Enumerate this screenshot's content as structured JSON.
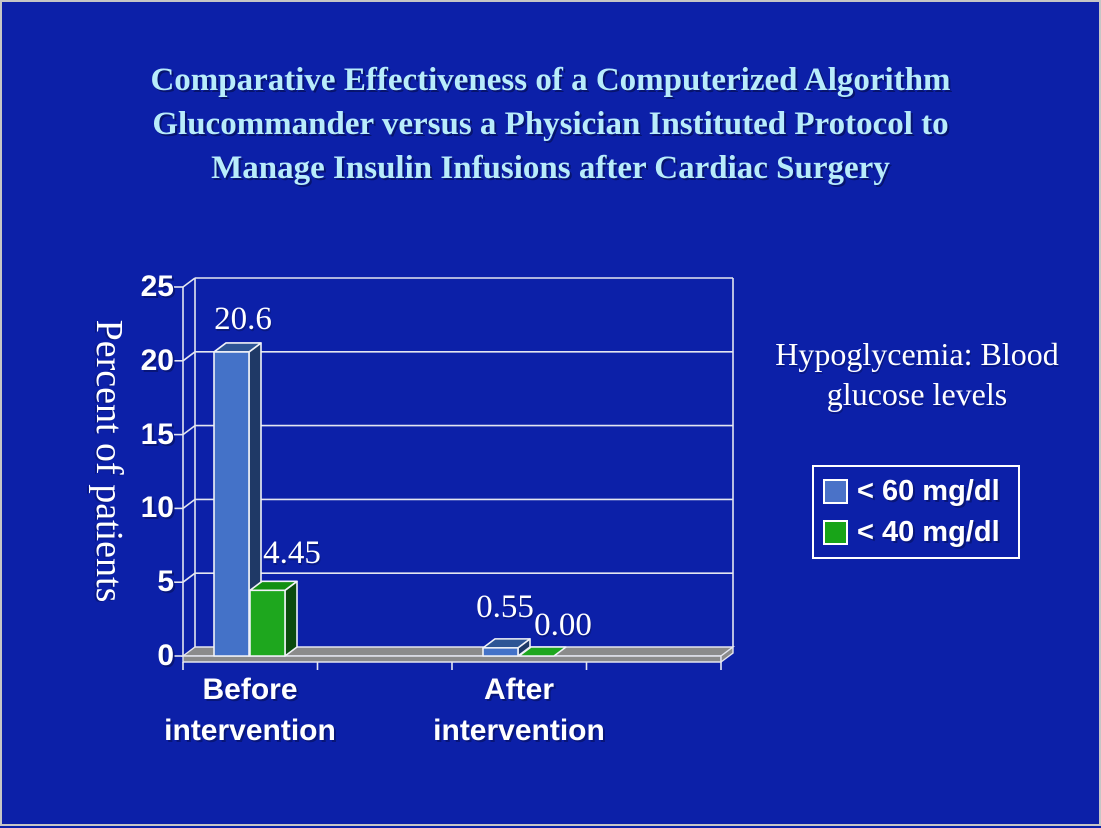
{
  "slide": {
    "title_lines": [
      "Comparative Effectiveness of a Computerized Algorithm",
      "Glucommander versus a Physician Instituted Protocol to",
      "Manage Insulin Infusions after Cardiac Surgery"
    ],
    "colors": {
      "background": "#0c20a8",
      "frame_border": "#c6c6c6",
      "title_text": "#b8ecfb",
      "body_text": "#ffffff",
      "gridline": "#e4e6f0",
      "floor": "#8b8b8b"
    }
  },
  "annotation": {
    "lines": [
      "Hypoglycemia: Blood",
      "glucose levels"
    ]
  },
  "legend": {
    "items": [
      {
        "label": "< 60 mg/dl",
        "color": "#4a72c8"
      },
      {
        "label": "< 40 mg/dl",
        "color": "#18a418"
      }
    ]
  },
  "chart_data": {
    "type": "bar",
    "style": "3d-clustered-column",
    "title": "",
    "xlabel": "",
    "ylabel": "Percent of patients",
    "categories": [
      "Before intervention",
      "After intervention"
    ],
    "category_label_lines": [
      [
        "Before",
        "intervention"
      ],
      [
        "After",
        "intervention"
      ]
    ],
    "series": [
      {
        "name": "< 60 mg/dl",
        "values": [
          20.6,
          0.55
        ],
        "labels": [
          "20.6",
          "0.55"
        ],
        "colors": {
          "front": "#4472c8",
          "side": "#1f3966",
          "top": "#2e5595"
        }
      },
      {
        "name": "< 40 mg/dl",
        "values": [
          4.45,
          0
        ],
        "labels": [
          "4.45",
          "0.00"
        ],
        "colors": {
          "front": "#1ea71e",
          "side": "#0b4a0d",
          "top": "#129012"
        }
      }
    ],
    "ylim": [
      0,
      25
    ],
    "yticks": [
      0,
      5,
      10,
      15,
      20,
      25
    ],
    "grid": true,
    "legend_position": "right",
    "wall_color": "transparent",
    "floor_color": "#8b8b8b",
    "gridline_color": "#e4e6f0"
  }
}
